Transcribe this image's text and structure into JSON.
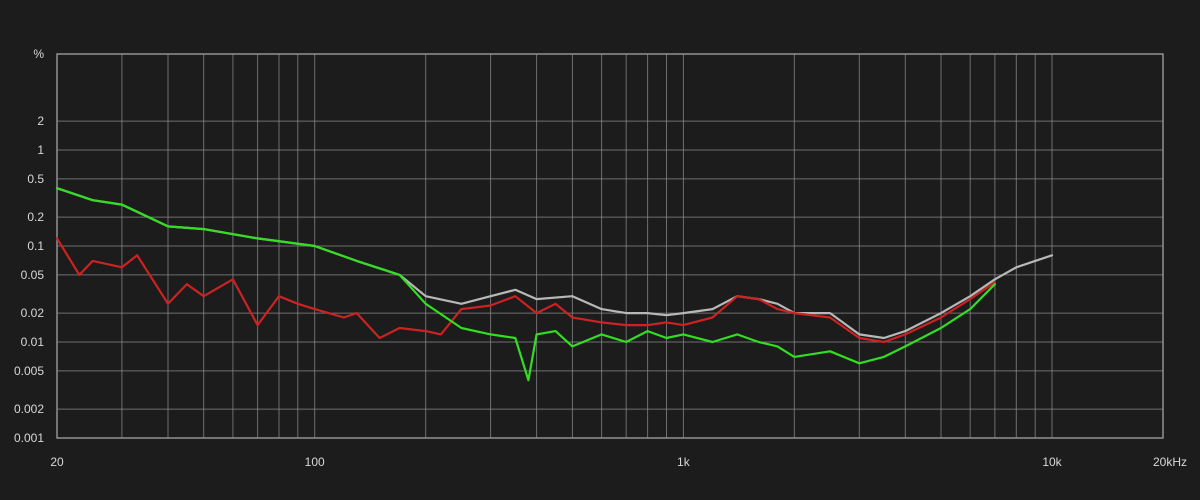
{
  "chart_data": {
    "type": "line",
    "xscale": "log",
    "yscale": "log",
    "xlim": [
      20,
      20000
    ],
    "ylim": [
      0.001,
      10
    ],
    "grid": true,
    "legend": "none",
    "ylabel": "%",
    "x_ticks": [
      {
        "value": 20,
        "label": "20"
      },
      {
        "value": 100,
        "label": "100"
      },
      {
        "value": 1000,
        "label": "1k"
      },
      {
        "value": 10000,
        "label": "10k"
      },
      {
        "value": 20000,
        "label": "20kHz"
      }
    ],
    "y_ticks": [
      {
        "value": 10,
        "label": "%"
      },
      {
        "value": 2,
        "label": "2"
      },
      {
        "value": 1,
        "label": "1"
      },
      {
        "value": 0.5,
        "label": "0.5"
      },
      {
        "value": 0.2,
        "label": "0.2"
      },
      {
        "value": 0.1,
        "label": "0.1"
      },
      {
        "value": 0.05,
        "label": "0.05"
      },
      {
        "value": 0.02,
        "label": "0.02"
      },
      {
        "value": 0.01,
        "label": "0.01"
      },
      {
        "value": 0.005,
        "label": "0.005"
      },
      {
        "value": 0.002,
        "label": "0.002"
      },
      {
        "value": 0.001,
        "label": "0.001"
      }
    ],
    "series": [
      {
        "color": "#b8b8b8",
        "points": [
          [
            20,
            0.4
          ],
          [
            25,
            0.3
          ],
          [
            30,
            0.27
          ],
          [
            40,
            0.16
          ],
          [
            50,
            0.15
          ],
          [
            70,
            0.12
          ],
          [
            100,
            0.1
          ],
          [
            130,
            0.07
          ],
          [
            170,
            0.05
          ],
          [
            200,
            0.03
          ],
          [
            250,
            0.025
          ],
          [
            300,
            0.03
          ],
          [
            350,
            0.035
          ],
          [
            400,
            0.028
          ],
          [
            500,
            0.03
          ],
          [
            600,
            0.022
          ],
          [
            700,
            0.02
          ],
          [
            800,
            0.02
          ],
          [
            900,
            0.019
          ],
          [
            1000,
            0.02
          ],
          [
            1200,
            0.022
          ],
          [
            1400,
            0.03
          ],
          [
            1600,
            0.028
          ],
          [
            1800,
            0.025
          ],
          [
            2000,
            0.02
          ],
          [
            2500,
            0.02
          ],
          [
            3000,
            0.012
          ],
          [
            3500,
            0.011
          ],
          [
            4000,
            0.013
          ],
          [
            5000,
            0.02
          ],
          [
            6000,
            0.03
          ],
          [
            7000,
            0.045
          ],
          [
            8000,
            0.06
          ],
          [
            9000,
            0.07
          ],
          [
            10000,
            0.08
          ]
        ]
      },
      {
        "color": "#cc2222",
        "points": [
          [
            20,
            0.12
          ],
          [
            23,
            0.05
          ],
          [
            25,
            0.07
          ],
          [
            30,
            0.06
          ],
          [
            33,
            0.08
          ],
          [
            40,
            0.025
          ],
          [
            45,
            0.04
          ],
          [
            50,
            0.03
          ],
          [
            60,
            0.045
          ],
          [
            70,
            0.015
          ],
          [
            80,
            0.03
          ],
          [
            90,
            0.025
          ],
          [
            100,
            0.022
          ],
          [
            120,
            0.018
          ],
          [
            130,
            0.02
          ],
          [
            150,
            0.011
          ],
          [
            170,
            0.014
          ],
          [
            200,
            0.013
          ],
          [
            220,
            0.012
          ],
          [
            250,
            0.022
          ],
          [
            300,
            0.024
          ],
          [
            350,
            0.03
          ],
          [
            400,
            0.02
          ],
          [
            450,
            0.025
          ],
          [
            500,
            0.018
          ],
          [
            600,
            0.016
          ],
          [
            700,
            0.015
          ],
          [
            800,
            0.015
          ],
          [
            900,
            0.016
          ],
          [
            1000,
            0.015
          ],
          [
            1200,
            0.018
          ],
          [
            1400,
            0.03
          ],
          [
            1600,
            0.028
          ],
          [
            1800,
            0.022
          ],
          [
            2000,
            0.02
          ],
          [
            2500,
            0.018
          ],
          [
            3000,
            0.011
          ],
          [
            3500,
            0.01
          ],
          [
            4000,
            0.012
          ],
          [
            5000,
            0.018
          ],
          [
            6000,
            0.028
          ],
          [
            7000,
            0.042
          ]
        ]
      },
      {
        "color": "#33dd22",
        "points": [
          [
            20,
            0.4
          ],
          [
            25,
            0.3
          ],
          [
            30,
            0.27
          ],
          [
            40,
            0.16
          ],
          [
            50,
            0.15
          ],
          [
            70,
            0.12
          ],
          [
            100,
            0.1
          ],
          [
            130,
            0.07
          ],
          [
            170,
            0.05
          ],
          [
            200,
            0.025
          ],
          [
            250,
            0.014
          ],
          [
            300,
            0.012
          ],
          [
            350,
            0.011
          ],
          [
            380,
            0.004
          ],
          [
            400,
            0.012
          ],
          [
            450,
            0.013
          ],
          [
            500,
            0.009
          ],
          [
            600,
            0.012
          ],
          [
            700,
            0.01
          ],
          [
            800,
            0.013
          ],
          [
            900,
            0.011
          ],
          [
            1000,
            0.012
          ],
          [
            1200,
            0.01
          ],
          [
            1400,
            0.012
          ],
          [
            1600,
            0.01
          ],
          [
            1800,
            0.009
          ],
          [
            2000,
            0.007
          ],
          [
            2500,
            0.008
          ],
          [
            3000,
            0.006
          ],
          [
            3500,
            0.007
          ],
          [
            4000,
            0.009
          ],
          [
            5000,
            0.014
          ],
          [
            6000,
            0.022
          ],
          [
            7000,
            0.04
          ]
        ]
      }
    ]
  }
}
